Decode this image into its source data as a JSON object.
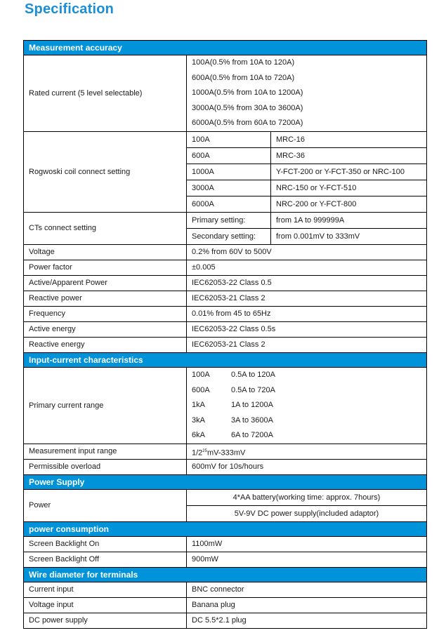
{
  "title": "Specification",
  "colors": {
    "title": "#1b8fd6",
    "section_header": "#0093da"
  },
  "sections": [
    {
      "header": "Measurement accuracy",
      "rows": [
        {
          "type": "list",
          "label": "Rated current (5 level selectable)",
          "values": [
            "100A(0.5% from 10A to 120A)",
            "600A(0.5% from 10A to 720A)",
            "1000A(0.5% from 10A to 1200A)",
            "3000A(0.5% from 30A to 3600A)",
            "6000A(0.5% from 60A to 7200A)"
          ]
        },
        {
          "type": "grid",
          "label": "Rogwoski coil connect setting",
          "pairs": [
            [
              "100A",
              "MRC-16"
            ],
            [
              "600A",
              "MRC-36"
            ],
            [
              "1000A",
              "Y-FCT-200 or Y-FCT-350 or NRC-100"
            ],
            [
              "3000A",
              "NRC-150 or Y-FCT-510"
            ],
            [
              "6000A",
              "NRC-200 or Y-FCT-800"
            ]
          ]
        },
        {
          "type": "grid",
          "label": "CTs connect setting",
          "pairs": [
            [
              "Primary setting:",
              "from 1A to 999999A"
            ],
            [
              "Secondary setting:",
              "from 0.001mV to 333mV"
            ]
          ]
        },
        {
          "type": "simple",
          "label": "Voltage",
          "value": "0.2% from 60V to 500V"
        },
        {
          "type": "simple",
          "label": "Power factor",
          "value": "±0.005"
        },
        {
          "type": "simple",
          "label": "Active/Apparent Power",
          "value": "IEC62053-22 Class 0.5"
        },
        {
          "type": "simple",
          "label": "Reactive power",
          "value": "IEC62053-21 Class 2"
        },
        {
          "type": "simple",
          "label": "Frequency",
          "value": "0.01% from 45 to 65Hz"
        },
        {
          "type": "simple",
          "label": "Active energy",
          "value": "IEC62053-22 Class 0.5s"
        },
        {
          "type": "simple",
          "label": "Reactive energy",
          "value": "IEC62053-21 Class 2"
        }
      ]
    },
    {
      "header": "Input-current characteristics",
      "rows": [
        {
          "type": "plist",
          "label": "Primary current range",
          "pairs": [
            [
              "100A",
              "0.5A to 120A"
            ],
            [
              "600A",
              "0.5A to 720A"
            ],
            [
              "1kA",
              "1A to 1200A"
            ],
            [
              "3kA",
              "3A to 3600A"
            ],
            [
              "6kA",
              "6A to 7200A"
            ]
          ]
        },
        {
          "type": "sup",
          "label": "Measurement input range",
          "value_pre": "1/2",
          "value_sup": "25",
          "value_post": "mV-333mV"
        },
        {
          "type": "simple",
          "label": "Permissible overload",
          "value": "600mV for 10s/hours"
        }
      ]
    },
    {
      "header": "Power Supply",
      "rows": [
        {
          "type": "center",
          "label": "Power",
          "values": [
            "4*AA battery(working time: approx. 7hours)",
            "5V-9V DC power supply(included adaptor)"
          ]
        }
      ]
    },
    {
      "header": "power consumption",
      "rows": [
        {
          "type": "simple",
          "label": "Screen Backlight On",
          "value": "1100mW"
        },
        {
          "type": "simple",
          "label": "Screen Backlight Off",
          "value": "900mW"
        }
      ]
    },
    {
      "header": "Wire diameter for terminals",
      "rows": [
        {
          "type": "simple",
          "label": "Current input",
          "value": "BNC connector"
        },
        {
          "type": "simple",
          "label": "Voltage input",
          "value": "Banana plug"
        },
        {
          "type": "simple",
          "label": "DC power supply",
          "value": "DC 5.5*2.1 plug"
        }
      ]
    }
  ]
}
